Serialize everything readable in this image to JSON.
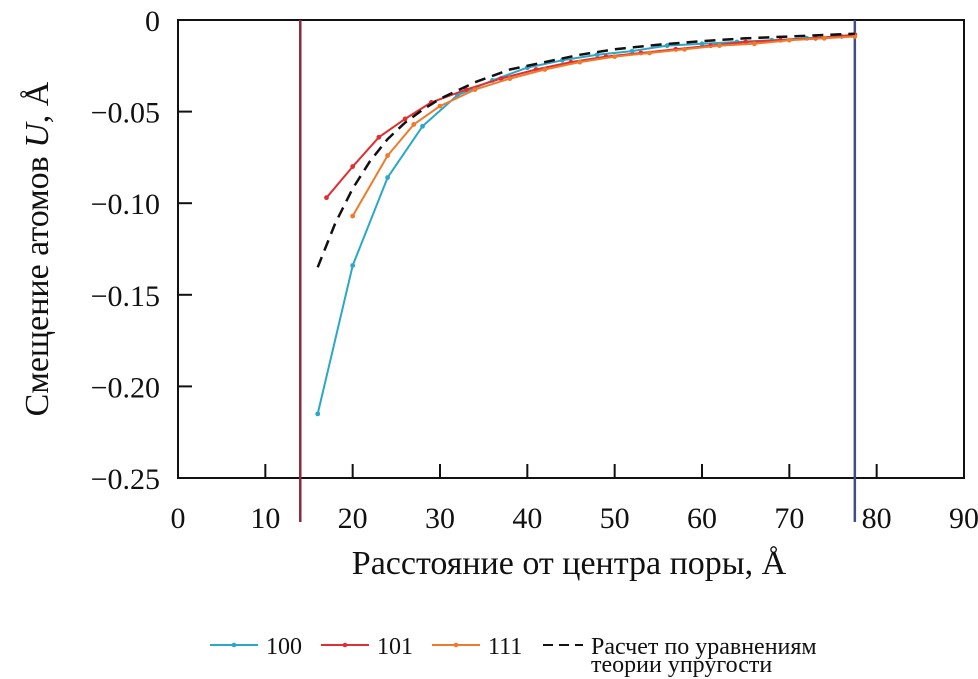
{
  "chart_data": {
    "type": "line",
    "xlabel": "Расстояние от центра поры, Å",
    "ylabel_prefix": "Смещение атомов ",
    "ylabel_var": "U",
    "ylabel_suffix": ", Å",
    "xlim": [
      0,
      90
    ],
    "ylim": [
      -0.25,
      0
    ],
    "xticks": [
      0,
      10,
      20,
      30,
      40,
      50,
      60,
      70,
      80,
      90
    ],
    "xtick_labels": [
      "0",
      "10",
      "20",
      "30",
      "40",
      "50",
      "60",
      "70",
      "80",
      "90"
    ],
    "yticks": [
      0,
      -0.05,
      -0.1,
      -0.15,
      -0.2,
      -0.25
    ],
    "ytick_labels": [
      "0",
      "−0.05",
      "−0.10",
      "−0.15",
      "−0.20",
      "−0.25"
    ],
    "grid": false,
    "legend_position": "bottom",
    "vertical_lines": [
      {
        "x": 14,
        "color": "#8b2a3a"
      },
      {
        "x": 77.5,
        "color": "#3f4f86"
      }
    ],
    "series": [
      {
        "name": "100",
        "color": "#2aa7c9",
        "style": "solid",
        "marker": true,
        "x": [
          16,
          20,
          24,
          28,
          32,
          36,
          40,
          44,
          48,
          52,
          56,
          60,
          64,
          68,
          72,
          76,
          77.5
        ],
        "y": [
          -0.215,
          -0.134,
          -0.086,
          -0.058,
          -0.041,
          -0.033,
          -0.026,
          -0.022,
          -0.019,
          -0.017,
          -0.014,
          -0.013,
          -0.012,
          -0.011,
          -0.01,
          -0.009,
          -0.008
        ]
      },
      {
        "name": "101",
        "color": "#e02f32",
        "style": "solid",
        "marker": true,
        "x": [
          17,
          20,
          23,
          26,
          29,
          33,
          37,
          41,
          45,
          49,
          53,
          57,
          61,
          65,
          69,
          73,
          77.5
        ],
        "y": [
          -0.097,
          -0.08,
          -0.064,
          -0.054,
          -0.045,
          -0.038,
          -0.032,
          -0.027,
          -0.023,
          -0.02,
          -0.018,
          -0.016,
          -0.014,
          -0.012,
          -0.011,
          -0.01,
          -0.008
        ]
      },
      {
        "name": "111",
        "color": "#f07a2c",
        "style": "solid",
        "marker": true,
        "x": [
          20,
          24,
          27,
          30,
          34,
          38,
          42,
          46,
          50,
          54,
          58,
          62,
          66,
          70,
          74,
          77.5
        ],
        "y": [
          -0.107,
          -0.074,
          -0.057,
          -0.047,
          -0.038,
          -0.032,
          -0.027,
          -0.023,
          -0.02,
          -0.018,
          -0.016,
          -0.014,
          -0.013,
          -0.011,
          -0.01,
          -0.009
        ]
      },
      {
        "name": "Расчет по уравнениям теории упругости",
        "name_line1": "Расчет по уравнениям",
        "name_line2": "теории упругости",
        "color": "#111111",
        "style": "dashed",
        "marker": false,
        "x": [
          16,
          18,
          20,
          22,
          24,
          26,
          28,
          30,
          34,
          38,
          42,
          46,
          50,
          55,
          60,
          65,
          70,
          77.5
        ],
        "y": [
          -0.135,
          -0.111,
          -0.092,
          -0.077,
          -0.065,
          -0.056,
          -0.049,
          -0.043,
          -0.034,
          -0.027,
          -0.023,
          -0.019,
          -0.016,
          -0.0135,
          -0.0115,
          -0.01,
          -0.009,
          -0.0075
        ]
      }
    ]
  }
}
